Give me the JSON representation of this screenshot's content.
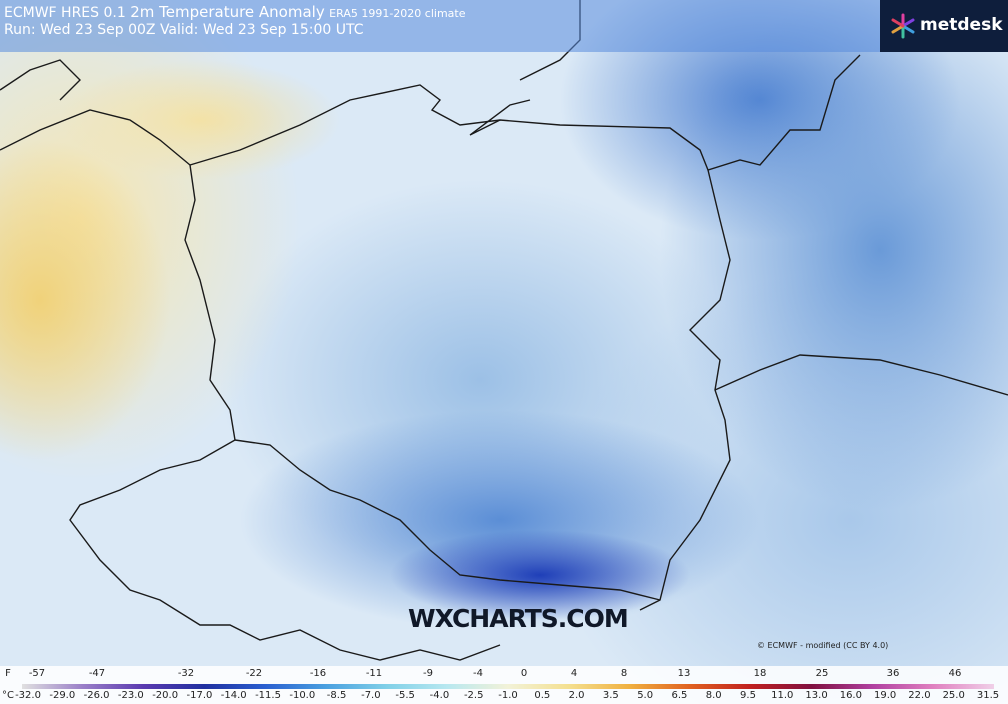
{
  "header": {
    "model": "ECMWF HRES 0.1",
    "title": "2m Temperature Anomaly",
    "climate": "ERA5 1991-2020 climate",
    "run": "Run: Wed 23 Sep 00Z Valid: Wed 23 Sep 15:00 UTC"
  },
  "logo": "metdesk",
  "watermark": "WXCHARTS.COM",
  "credit": "© ECMWF - modified (CC BY 4.0)",
  "legend": {
    "f_unit": "F",
    "f_labels": [
      "-57",
      "-47",
      "-32",
      "-22",
      "-16",
      "-11",
      "-9",
      "-4",
      "0",
      "4",
      "8",
      "13",
      "18",
      "25",
      "36",
      "46"
    ],
    "c_unit": "°C",
    "c_labels": [
      "-32.0",
      "-29.0",
      "-26.0",
      "-23.0",
      "-20.0",
      "-17.0",
      "-14.0",
      "-11.5",
      "-10.0",
      "-8.5",
      "-7.0",
      "-5.5",
      "-4.0",
      "-2.5",
      "-1.0",
      "0.5",
      "2.0",
      "3.5",
      "5.0",
      "6.5",
      "8.0",
      "9.5",
      "11.0",
      "13.0",
      "16.0",
      "19.0",
      "22.0",
      "25.0",
      "31.5"
    ]
  }
}
